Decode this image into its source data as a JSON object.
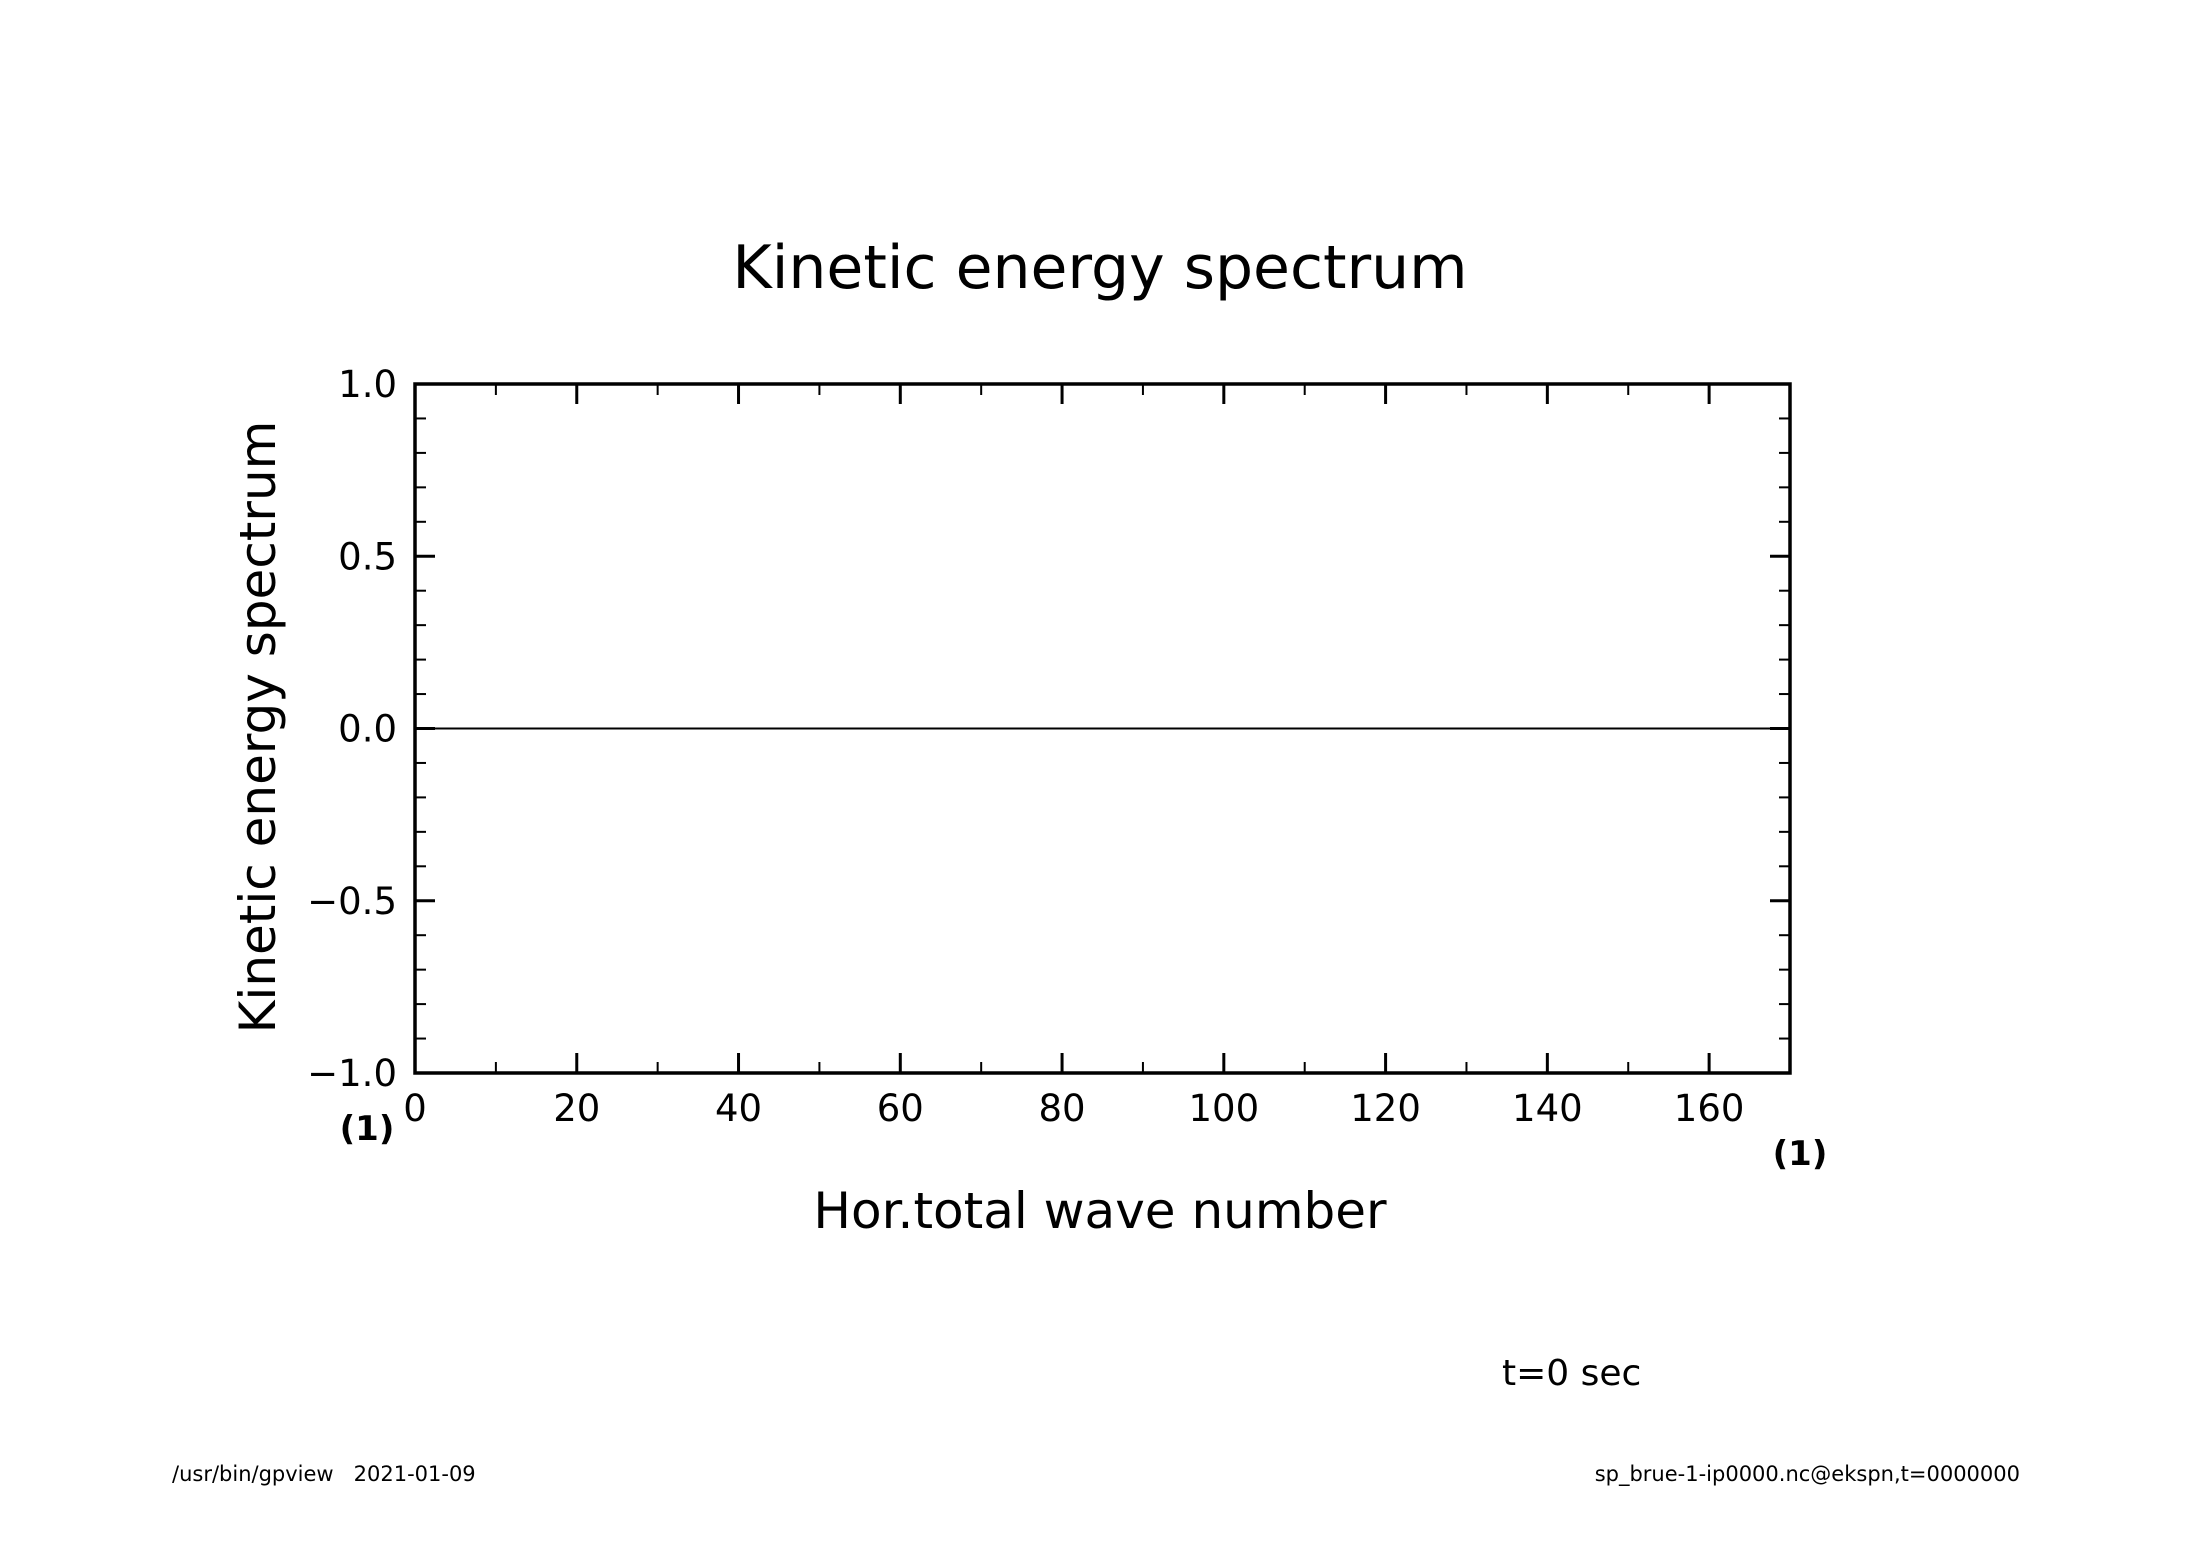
{
  "chart_data": {
    "type": "line",
    "title": "Kinetic energy spectrum",
    "xlabel": "Hor.total wave number",
    "ylabel": "Kinetic energy spectrum",
    "xlim": [
      0,
      170
    ],
    "ylim": [
      -1.0,
      1.0
    ],
    "x_unit": "(1)",
    "y_unit": "(1)",
    "xticks": [
      0,
      20,
      40,
      60,
      80,
      100,
      120,
      140,
      160
    ],
    "xtick_labels": [
      "0",
      "20",
      "40",
      "60",
      "80",
      "100",
      "120",
      "140",
      "160"
    ],
    "xminor_step": 10,
    "yticks": [
      -1.0,
      -0.5,
      0.0,
      0.5,
      1.0
    ],
    "ytick_labels": [
      "−1.0",
      "−0.5",
      "0.0",
      "0.5",
      "1.0"
    ],
    "yminor_step": 0.1,
    "grid": false,
    "series": [
      {
        "x": [
          0,
          170
        ],
        "y": [
          0,
          0
        ]
      }
    ]
  },
  "annotations": {
    "time": "t=0 sec",
    "footer_left": "/usr/bin/gpview   2021-01-09",
    "footer_right": "sp_brue-1-ip0000.nc@ekspn,t=0000000"
  }
}
